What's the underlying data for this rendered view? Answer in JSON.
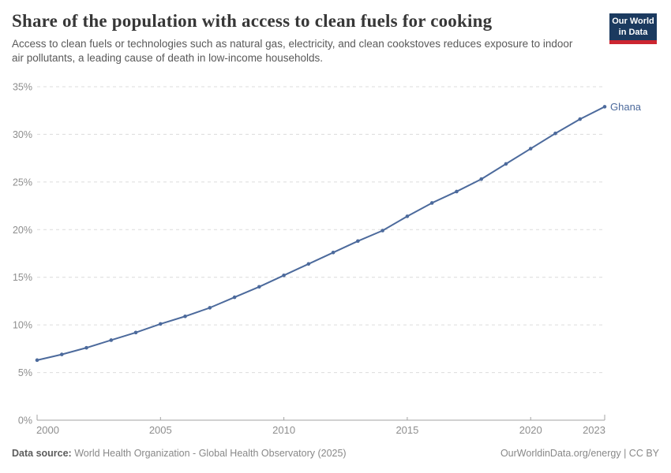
{
  "header": {
    "title": "Share of the population with access to clean fuels for cooking",
    "subtitle": "Access to clean fuels or technologies such as natural gas, electricity, and clean cookstoves reduces exposure to indoor air pollutants, a leading cause of death in low-income households.",
    "logo": {
      "line1": "Our World",
      "line2": "in Data"
    }
  },
  "chart_data": {
    "type": "line",
    "title": "Share of the population with access to clean fuels for cooking",
    "xlabel": "",
    "ylabel": "",
    "xlim": [
      2000,
      2023
    ],
    "ylim": [
      0,
      35
    ],
    "x_ticks": [
      2000,
      2005,
      2010,
      2015,
      2020,
      2023
    ],
    "y_ticks": [
      0,
      5,
      10,
      15,
      20,
      25,
      30,
      35
    ],
    "y_tick_suffix": "%",
    "grid": "horizontal-dashed",
    "legend_position": "end-of-line-label",
    "series": [
      {
        "name": "Ghana",
        "color": "#4c6a9c",
        "x": [
          2000,
          2001,
          2002,
          2003,
          2004,
          2005,
          2006,
          2007,
          2008,
          2009,
          2010,
          2011,
          2012,
          2013,
          2014,
          2015,
          2016,
          2017,
          2018,
          2019,
          2020,
          2021,
          2022,
          2023
        ],
        "values": [
          6.3,
          6.9,
          7.6,
          8.4,
          9.2,
          10.1,
          10.9,
          11.8,
          12.9,
          14.0,
          15.2,
          16.4,
          17.6,
          18.8,
          19.9,
          21.4,
          22.8,
          24.0,
          25.3,
          26.9,
          28.5,
          30.1,
          31.6,
          32.9
        ]
      }
    ]
  },
  "footer": {
    "source_label": "Data source:",
    "source_value": "World Health Organization - Global Health Observatory (2025)",
    "credit_link": "OurWorldinData.org/energy",
    "divider": "|",
    "license": "CC BY"
  },
  "colors": {
    "series": "#4c6a9c",
    "gridline": "#dcdcdc",
    "axis": "#a3a3a3",
    "tick_label": "#8e8e8e",
    "logo_bg": "#1b3a5f",
    "logo_accent": "#cc2631"
  }
}
